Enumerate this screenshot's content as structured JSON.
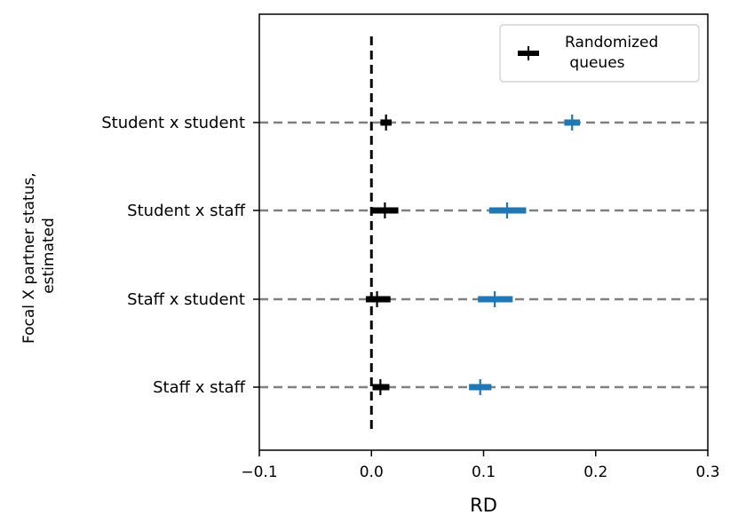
{
  "chart_data": {
    "type": "scatter",
    "xlabel": "RD",
    "ylabel": [
      "Focal X partner status,",
      "estimated"
    ],
    "xlim": [
      -0.1,
      0.3
    ],
    "xticks": [
      -0.1,
      0.0,
      0.1,
      0.2,
      0.3
    ],
    "xtick_labels": [
      "−0.1",
      "0.0",
      "0.1",
      "0.2",
      "0.3"
    ],
    "categories": [
      "Student x student",
      "Student x staff",
      "Staff x student",
      "Staff x staff"
    ],
    "reference_line_x": 0.0,
    "legend": {
      "placement": "top-right",
      "label_lines": [
        "Randomized",
        " queues"
      ]
    },
    "series": [
      {
        "name": "Randomized queues",
        "color": "#000000",
        "points": [
          {
            "category": "Student x student",
            "estimate": 0.013,
            "ci": [
              0.008,
              0.018
            ]
          },
          {
            "category": "Student x staff",
            "estimate": 0.012,
            "ci": [
              0.0,
              0.024
            ]
          },
          {
            "category": "Staff x student",
            "estimate": 0.005,
            "ci": [
              -0.005,
              0.017
            ]
          },
          {
            "category": "Staff x staff",
            "estimate": 0.008,
            "ci": [
              0.001,
              0.016
            ]
          }
        ]
      },
      {
        "color": "#1f77b4",
        "points": [
          {
            "category": "Student x student",
            "estimate": 0.179,
            "ci": [
              0.172,
              0.186
            ]
          },
          {
            "category": "Student x staff",
            "estimate": 0.121,
            "ci": [
              0.105,
              0.138
            ]
          },
          {
            "category": "Staff x student",
            "estimate": 0.11,
            "ci": [
              0.095,
              0.126
            ]
          },
          {
            "category": "Staff x staff",
            "estimate": 0.097,
            "ci": [
              0.087,
              0.107
            ]
          }
        ]
      }
    ]
  }
}
